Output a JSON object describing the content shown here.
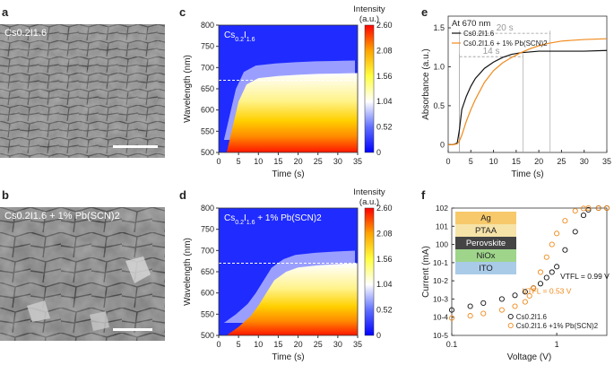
{
  "panels": {
    "a": {
      "label": "a",
      "caption": "Cs0.2I1.6"
    },
    "b": {
      "label": "b",
      "caption": "Cs0.2I1.6 + 1% Pb(SCN)2"
    },
    "c": {
      "label": "c",
      "caption": "Cs0.2I1.6"
    },
    "d": {
      "label": "d",
      "caption": "Cs0.2I1.6 + 1% Pb(SCN)2"
    },
    "e": {
      "label": "e"
    },
    "f": {
      "label": "f"
    }
  },
  "colorbar": {
    "title": "Intensity",
    "unit": "(a.u.)",
    "ticks": [
      "2.60",
      "2.08",
      "1.56",
      "1.04",
      "0.52",
      "0"
    ],
    "colors": [
      "#ff0000",
      "#ffa500",
      "#ffff40",
      "#ffffff",
      "#6070ff",
      "#0000ff"
    ]
  },
  "chart_data": [
    {
      "id": "c",
      "type": "heatmap",
      "xlabel": "Time (s)",
      "ylabel": "Wavelength (nm)",
      "xlim": [
        0,
        35
      ],
      "ylim": [
        500,
        800
      ],
      "xticks": [
        "0",
        "5",
        "10",
        "15",
        "20",
        "25",
        "30",
        "35"
      ],
      "yticks": [
        "500",
        "550",
        "600",
        "650",
        "700",
        "750",
        "800"
      ],
      "dashed_line_wavelength": 670,
      "edge_points": {
        "time": [
          2,
          3,
          4,
          5,
          7,
          10,
          15,
          20,
          25,
          30,
          35
        ],
        "wavelength": [
          500,
          540,
          580,
          620,
          660,
          675,
          680,
          683,
          685,
          686,
          687
        ]
      }
    },
    {
      "id": "d",
      "type": "heatmap",
      "xlabel": "Time (s)",
      "ylabel": "Wavelength (nm)",
      "xlim": [
        0,
        35
      ],
      "ylim": [
        500,
        800
      ],
      "xticks": [
        "0",
        "5",
        "10",
        "15",
        "20",
        "25",
        "30",
        "35"
      ],
      "yticks": [
        "500",
        "550",
        "600",
        "650",
        "700",
        "750",
        "800"
      ],
      "dashed_line_wavelength": 670,
      "edge_points": {
        "time": [
          2,
          5,
          8,
          10,
          12,
          14,
          17,
          20,
          25,
          30,
          35
        ],
        "wavelength": [
          500,
          520,
          545,
          570,
          600,
          630,
          650,
          660,
          665,
          668,
          670
        ]
      }
    },
    {
      "id": "e",
      "type": "line",
      "title": "At 670 nm",
      "xlabel": "Time (s)",
      "ylabel": "Absorbance (a.u.)",
      "xlim": [
        0,
        35
      ],
      "ylim": [
        -0.1,
        1.65
      ],
      "xticks": [
        0,
        5,
        10,
        15,
        20,
        25,
        30,
        35
      ],
      "yticks": [
        0,
        0.5,
        1.0,
        1.5
      ],
      "ytick_labels": [
        "0",
        "0.5",
        "1.0",
        "1.5"
      ],
      "series": [
        {
          "name": "Cs0.2I1.6",
          "color": "#111111",
          "x": [
            0,
            1,
            2,
            2.5,
            3,
            4,
            5,
            6,
            8,
            10,
            12,
            14,
            16,
            18,
            20,
            25,
            30,
            35
          ],
          "y": [
            0,
            0,
            0.02,
            0.2,
            0.45,
            0.62,
            0.75,
            0.85,
            0.98,
            1.06,
            1.12,
            1.16,
            1.18,
            1.19,
            1.2,
            1.2,
            1.2,
            1.21
          ]
        },
        {
          "name": "Cs0.2I1.6 + 1% Pb(SCN)2",
          "color": "#f08a1c",
          "x": [
            0,
            1,
            2,
            2.5,
            3,
            4,
            5,
            6,
            8,
            10,
            12,
            14,
            16,
            18,
            20,
            22,
            25,
            30,
            35
          ],
          "y": [
            0,
            0,
            0.01,
            0.05,
            0.12,
            0.3,
            0.45,
            0.58,
            0.8,
            0.95,
            1.05,
            1.12,
            1.18,
            1.23,
            1.27,
            1.3,
            1.33,
            1.35,
            1.36
          ]
        }
      ],
      "annotations": [
        {
          "text": "20 s",
          "x_from": 2.5,
          "x_to": 22.5,
          "y": 1.43
        },
        {
          "text": "14 s",
          "x_from": 2.5,
          "x_to": 16.5,
          "y": 1.13
        }
      ]
    },
    {
      "id": "f",
      "type": "scatter",
      "xlabel": "Voltage (V)",
      "ylabel": "Current (mA)",
      "xscale": "log",
      "yscale": "log",
      "xlim": [
        0.1,
        3
      ],
      "ylim": [
        1e-05,
        100
      ],
      "xtick_values": [
        0.1,
        1
      ],
      "xtick_labels": [
        "0.1",
        "1"
      ],
      "ytick_labels": [
        "10-5",
        "10-4",
        "10-3",
        "10-2",
        "10-1",
        "100",
        "101",
        "102"
      ],
      "ytick_exponents": [
        -5,
        -4,
        -3,
        -2,
        -1,
        0,
        1,
        2
      ],
      "series": [
        {
          "name": "Cs0.2I1.6",
          "color": "#111111",
          "x": [
            0.1,
            0.15,
            0.2,
            0.3,
            0.4,
            0.5,
            0.6,
            0.7,
            0.8,
            0.9,
            1.0,
            1.2,
            1.5,
            1.8,
            2.0,
            2.5,
            3.0
          ],
          "y": [
            0.00025,
            0.0004,
            0.0006,
            0.001,
            0.0016,
            0.0025,
            0.004,
            0.007,
            0.015,
            0.03,
            0.06,
            0.5,
            5,
            40,
            80,
            100,
            100
          ]
        },
        {
          "name": "Cs0.2I1.6 +1% Pb(SCN)2",
          "color": "#f08a1c",
          "x": [
            0.1,
            0.15,
            0.2,
            0.3,
            0.4,
            0.5,
            0.55,
            0.6,
            0.7,
            0.8,
            0.9,
            1.0,
            1.2,
            1.5,
            1.8,
            2.0,
            2.5,
            3.0
          ],
          "y": [
            9e-05,
            0.00012,
            0.00016,
            0.00025,
            0.0004,
            0.0007,
            0.0015,
            0.004,
            0.03,
            0.2,
            1,
            4,
            20,
            70,
            95,
            100,
            100,
            100
          ]
        }
      ],
      "annotations": [
        {
          "text": "VTFL = 0.99 V",
          "color": "#111111"
        },
        {
          "text": "VTFL = 0.53 V",
          "color": "#f08a1c"
        }
      ],
      "device_stack": [
        "Ag",
        "PTAA",
        "Perovskite",
        "NiOx",
        "ITO"
      ]
    }
  ]
}
